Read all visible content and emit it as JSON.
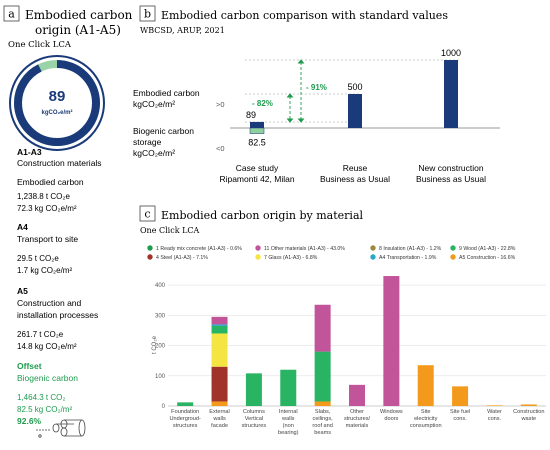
{
  "colors": {
    "navy": "#1a3a7a",
    "green": "#1f9b4e",
    "biogenic": "#8fd19e",
    "grey": "#888888",
    "dark": "#222222",
    "panel_tag_bg": "#ffffff"
  },
  "panel_a": {
    "tag": "a",
    "title_line1": "Embodied carbon",
    "title_line2": "origin (A1-A5)",
    "subtitle": "One Click LCA",
    "donut_value": "89",
    "donut_unit": "kgCO₂e/m²",
    "donut_fraction": 0.926,
    "sections": [
      {
        "code": "A1-A3",
        "label": "Construction materials"
      },
      {
        "code": "A4",
        "label": "Transport to site"
      },
      {
        "code": "A5",
        "label": "Construction and",
        "label2": "installation processes"
      }
    ],
    "embodied_heading": "Embodied carbon",
    "a13_total": "1,238.8 t CO₂e",
    "a13_per_m2": "72.3 kg CO₂e/m²",
    "a4_total": "29.5 t CO₂e",
    "a4_per_m2": "1.7 kg CO₂e/m²",
    "a5_total": "261.7 t CO₂e",
    "a5_per_m2": "14.8 kg CO₂e/m²",
    "offset_heading": "Offset",
    "offset_label": "Biogenic carbon",
    "offset_total": "1,464.3 t CO₂",
    "offset_per_m2": "82.5 kg CO₂/m²",
    "offset_pct": "92.6%"
  },
  "panel_b": {
    "tag": "b",
    "title": "Embodied carbon comparison with standard values",
    "source": "WBCSD, ARUP, 2021",
    "label_embodied_1": "Embodied carbon",
    "label_embodied_2": "kgCO₂e/m²",
    "label_biogenic_1": "Biogenic carbon",
    "label_biogenic_2": "storage",
    "label_biogenic_3": "kgCO₂e/m²",
    "gt_zero": ">0",
    "lt_zero": "<0",
    "pct_91": "- 91%",
    "pct_82": "- 82%",
    "categories": [
      {
        "line1": "Case study",
        "line2": "Ripamonti 42, Milan"
      },
      {
        "line1": "Reuse",
        "line2": "Business as Usual"
      },
      {
        "line1": "New construction",
        "line2": "Business as Usual"
      }
    ]
  },
  "panel_c": {
    "tag": "c",
    "title": "Embodied carbon origin by material",
    "subtitle": "One Click LCA",
    "ylabel": "t CO₂e",
    "legend": [
      {
        "label": "1 Ready mix concrete (A1-A3) - 0.6%",
        "color": "#1f9b4e"
      },
      {
        "label": "11 Other materials (A1-A3) - 43.0%",
        "color": "#c2549a"
      },
      {
        "label": "8 Insulation (A1-A3) - 1.2%",
        "color": "#9c8a3a"
      },
      {
        "label": "9 Wood (A1-A3) - 22.8%",
        "color": "#28b463"
      },
      {
        "label": "4 Steel (A1-A3) - 7.1%",
        "color": "#a0342a"
      },
      {
        "label": "7 Glass (A1-A3) - 6.8%",
        "color": "#f4e542"
      },
      {
        "label": "A4 Transportation - 1.9%",
        "color": "#2aa7c9"
      },
      {
        "label": "A5 Construction - 16.6%",
        "color": "#f39a1c"
      }
    ]
  },
  "chart_data": [
    {
      "type": "bar",
      "title": "Embodied carbon comparison with standard values",
      "ylabel": "kgCO₂e/m²",
      "categories": [
        "Case study Ripamonti 42, Milan",
        "Reuse Business as Usual",
        "New construction Business as Usual"
      ],
      "series": [
        {
          "name": "Embodied carbon",
          "values": [
            89,
            500,
            1000
          ],
          "color": "#1a3a7a"
        },
        {
          "name": "Biogenic carbon storage",
          "values": [
            -82.5,
            0,
            0
          ],
          "color": "#8fd19e"
        }
      ],
      "data_labels": [
        "89",
        "500",
        "1000"
      ],
      "biogenic_label": "82.5",
      "ylim": [
        -100,
        1000
      ]
    },
    {
      "type": "bar",
      "stacked": true,
      "title": "Embodied carbon origin by material",
      "ylabel": "t CO₂e",
      "ylim": [
        0,
        450
      ],
      "yticks": [
        0,
        100,
        200,
        300,
        400
      ],
      "categories": [
        {
          "lines": [
            "Foundation",
            "Undergroud-",
            "structures"
          ]
        },
        {
          "lines": [
            "External",
            "walls",
            "facade"
          ]
        },
        {
          "lines": [
            "Columns",
            "Vertical",
            "structures"
          ]
        },
        {
          "lines": [
            "Internal",
            "walls",
            "(non",
            "bearing)"
          ]
        },
        {
          "lines": [
            "Slabs,",
            "ceilings,",
            "roof and",
            "beams"
          ]
        },
        {
          "lines": [
            "Other",
            "structures/",
            "materials"
          ]
        },
        {
          "lines": [
            "Windows",
            "doors"
          ]
        },
        {
          "lines": [
            "Site",
            "electricity",
            "consumption"
          ]
        },
        {
          "lines": [
            "Site fuel",
            "cons."
          ]
        },
        {
          "lines": [
            "Water",
            "cons."
          ]
        },
        {
          "lines": [
            "Construction",
            "waste"
          ]
        }
      ],
      "series": [
        {
          "name": "1 Ready mix concrete (A1-A3)",
          "color": "#1f9b4e",
          "values": [
            0,
            0,
            0,
            0,
            0,
            0,
            0,
            0,
            0,
            0,
            0
          ]
        },
        {
          "name": "A5 Construction",
          "color": "#f39a1c",
          "values": [
            0,
            15,
            0,
            0,
            15,
            0,
            0,
            135,
            65,
            2,
            5
          ]
        },
        {
          "name": "4 Steel (A1-A3)",
          "color": "#a0342a",
          "values": [
            0,
            115,
            0,
            0,
            0,
            0,
            0,
            0,
            0,
            0,
            0
          ]
        },
        {
          "name": "7 Glass (A1-A3)",
          "color": "#f4e542",
          "values": [
            0,
            110,
            0,
            0,
            0,
            0,
            0,
            0,
            0,
            0,
            0
          ]
        },
        {
          "name": "9 Wood (A1-A3)",
          "color": "#28b463",
          "values": [
            12,
            25,
            108,
            120,
            165,
            0,
            0,
            0,
            0,
            0,
            0
          ]
        },
        {
          "name": "A4 Transportation",
          "color": "#2aa7c9",
          "values": [
            0,
            5,
            0,
            0,
            0,
            0,
            0,
            0,
            0,
            0,
            0
          ]
        },
        {
          "name": "11 Other materials (A1-A3)",
          "color": "#c2549a",
          "values": [
            0,
            25,
            0,
            0,
            155,
            70,
            430,
            0,
            0,
            0,
            0
          ]
        }
      ]
    }
  ]
}
